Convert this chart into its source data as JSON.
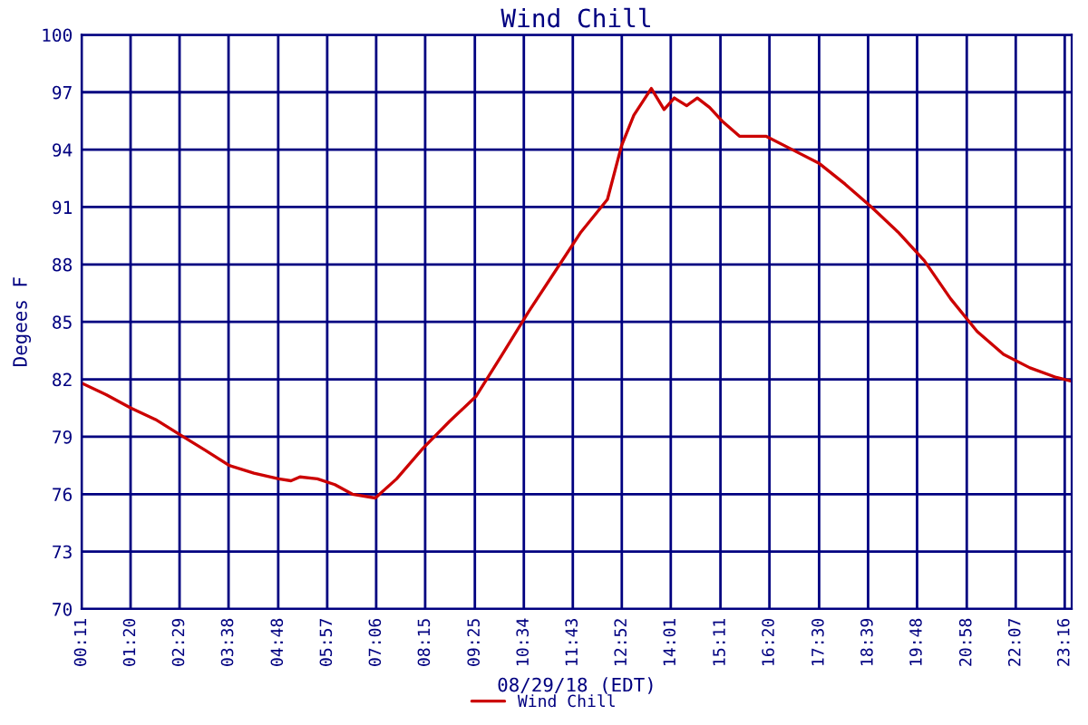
{
  "chart_data": {
    "type": "line",
    "title": "Wind Chill",
    "xlabel": "08/29/18 (EDT)",
    "ylabel": "Degees F",
    "x": [
      0.1833,
      0.76,
      1.34,
      1.92,
      2.5,
      3.08,
      3.65,
      4.23,
      4.81,
      5.1,
      5.31,
      5.72,
      6.13,
      6.54,
      7.08,
      7.58,
      8.2,
      8.82,
      9.44,
      10.06,
      10.67,
      11.29,
      11.91,
      12.53,
      12.86,
      13.15,
      13.56,
      13.86,
      14.1,
      14.39,
      14.64,
      14.93,
      15.22,
      15.63,
      16.25,
      16.87,
      17.49,
      18.11,
      18.73,
      19.35,
      19.97,
      20.59,
      21.21,
      21.83,
      22.45,
      23.07,
      23.43
    ],
    "series": [
      {
        "name": "Wind Chill",
        "color": "#cc0000",
        "values": [
          81.8,
          81.2,
          80.5,
          79.9,
          79.1,
          78.3,
          77.5,
          77.1,
          76.8,
          76.7,
          76.9,
          76.8,
          76.5,
          76.0,
          75.8,
          76.8,
          78.4,
          79.8,
          81.1,
          83.3,
          85.5,
          87.6,
          89.7,
          91.4,
          94.2,
          95.8,
          97.2,
          96.1,
          96.7,
          96.3,
          96.7,
          96.2,
          95.5,
          94.7,
          94.7,
          94.0,
          93.3,
          92.2,
          91.0,
          89.7,
          88.2,
          86.2,
          84.5,
          83.3,
          82.6,
          82.1,
          81.9
        ]
      }
    ],
    "xlim": [
      0.1833,
      23.43
    ],
    "xticks": [
      {
        "value": 0.1833,
        "label": "00:11"
      },
      {
        "value": 1.3333,
        "label": "01:20"
      },
      {
        "value": 2.4833,
        "label": "02:29"
      },
      {
        "value": 3.6333,
        "label": "03:38"
      },
      {
        "value": 4.8,
        "label": "04:48"
      },
      {
        "value": 5.95,
        "label": "05:57"
      },
      {
        "value": 7.1,
        "label": "07:06"
      },
      {
        "value": 8.25,
        "label": "08:15"
      },
      {
        "value": 9.4167,
        "label": "09:25"
      },
      {
        "value": 10.5667,
        "label": "10:34"
      },
      {
        "value": 11.7167,
        "label": "11:43"
      },
      {
        "value": 12.8667,
        "label": "12:52"
      },
      {
        "value": 14.0167,
        "label": "14:01"
      },
      {
        "value": 15.1833,
        "label": "15:11"
      },
      {
        "value": 16.3333,
        "label": "16:20"
      },
      {
        "value": 17.5,
        "label": "17:30"
      },
      {
        "value": 18.65,
        "label": "18:39"
      },
      {
        "value": 19.8,
        "label": "19:48"
      },
      {
        "value": 20.9667,
        "label": "20:58"
      },
      {
        "value": 22.1167,
        "label": "22:07"
      },
      {
        "value": 23.2667,
        "label": "23:16"
      }
    ],
    "ylim": [
      70,
      100
    ],
    "yticks": [
      70,
      73,
      76,
      79,
      82,
      85,
      88,
      91,
      94,
      97,
      100
    ],
    "grid": true,
    "legend": "bottom",
    "marker": "none",
    "line_style": "solid"
  }
}
